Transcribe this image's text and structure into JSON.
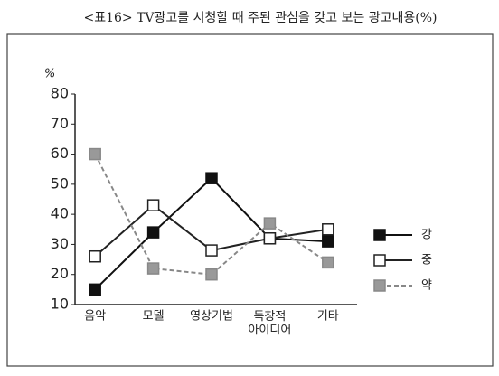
{
  "chart_data": {
    "type": "line",
    "title": "<표16> TV광고를 시청할 때 주된 관심을 갖고 보는 광고내용(%)",
    "y_label": "%",
    "categories": [
      "음악",
      "모델",
      "영상기법",
      "독창적 아이디어",
      "기타"
    ],
    "series": [
      {
        "name": "강",
        "color": "#111111",
        "marker_fill": "#111111",
        "line_style": "solid",
        "values": [
          15,
          34,
          52,
          32,
          31
        ]
      },
      {
        "name": "중",
        "color": "#222222",
        "marker_fill": "#ffffff",
        "line_style": "solid",
        "values": [
          26,
          43,
          28,
          32,
          35
        ]
      },
      {
        "name": "약",
        "color": "#888888",
        "marker_fill": "#999999",
        "line_style": "dashed",
        "values": [
          60,
          22,
          20,
          37,
          24
        ]
      }
    ],
    "ylim": [
      10,
      80
    ],
    "yticks": [
      10,
      20,
      30,
      40,
      50,
      60,
      70,
      80
    ],
    "grid": false
  }
}
